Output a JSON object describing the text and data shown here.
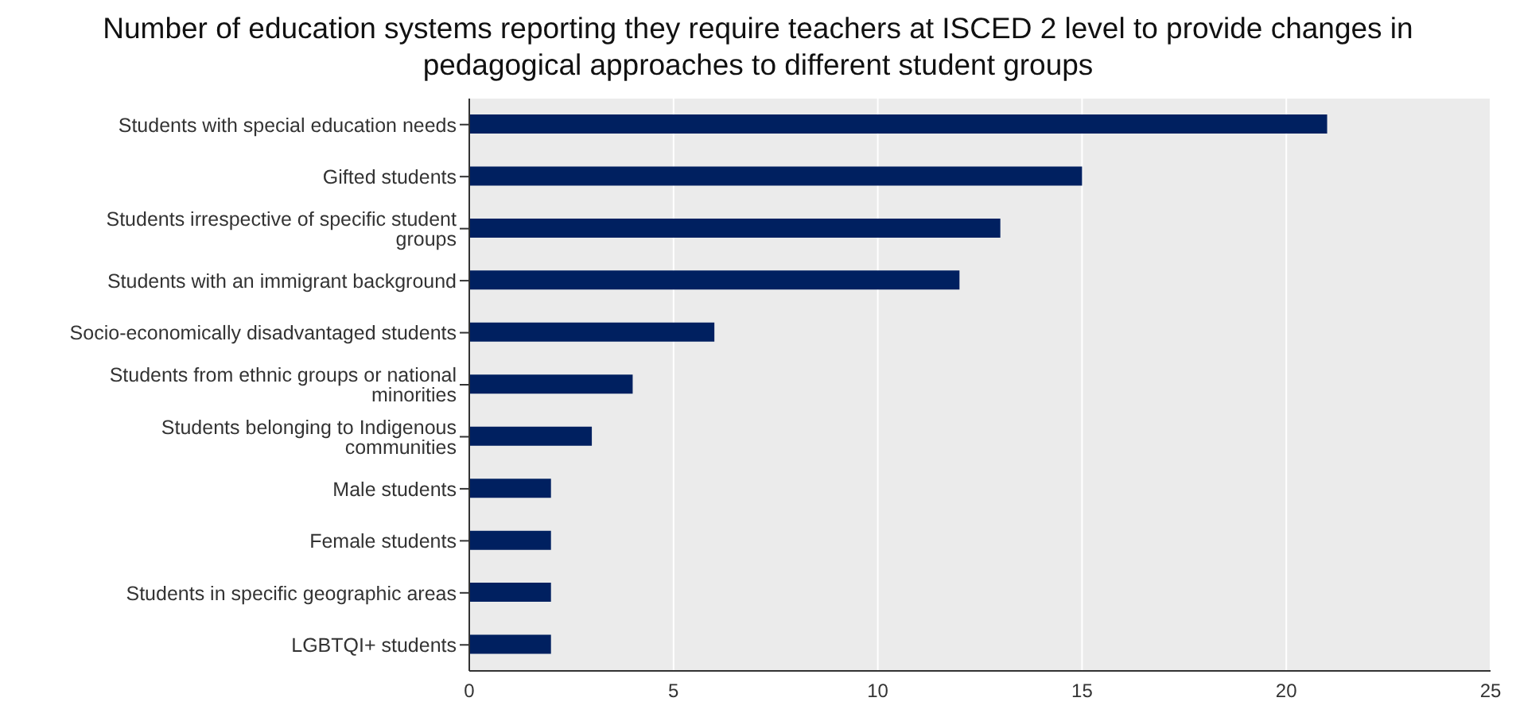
{
  "chart_data": {
    "type": "bar",
    "orientation": "horizontal",
    "title": "Number of education systems reporting they require teachers at ISCED 2 level to provide changes in pedagogical approaches to different student groups",
    "categories": [
      "Students with special education needs",
      "Gifted students",
      "Students irrespective of specific student groups",
      "Students with an immigrant background",
      "Socio-economically disadvantaged students",
      "Students from ethnic groups or national minorities",
      "Students belonging to Indigenous communities",
      "Male students",
      "Female students",
      "Students in specific geographic areas",
      "LGBTQI+ students"
    ],
    "values": [
      21,
      15,
      13,
      12,
      6,
      4,
      3,
      2,
      2,
      2,
      2
    ],
    "color": "#002060",
    "xlim": [
      0,
      25
    ],
    "xticks": [
      0,
      5,
      10,
      15,
      20,
      25
    ],
    "grid": "x",
    "legend": false
  }
}
